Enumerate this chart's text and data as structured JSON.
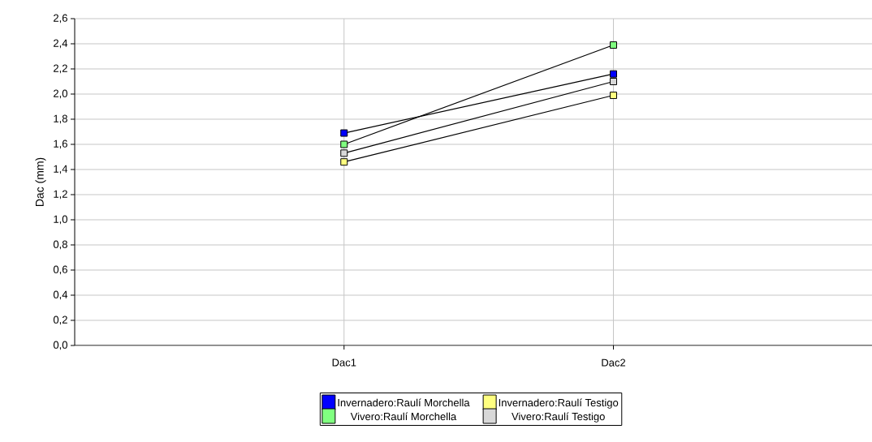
{
  "chart_data": {
    "type": "line",
    "ylabel": "Dac (mm)",
    "categories": [
      "Dac1",
      "Dac2"
    ],
    "series": [
      {
        "name": "Invernadero:Raulí Morchella",
        "color": "#0000ff",
        "values": [
          1.69,
          2.16
        ]
      },
      {
        "name": "Invernadero:Raulí Testigo",
        "color": "#ffff80",
        "values": [
          1.46,
          1.99
        ]
      },
      {
        "name": "Vivero:Raulí Morchella",
        "color": "#80ff80",
        "values": [
          1.6,
          2.39
        ]
      },
      {
        "name": "Vivero:Raulí Testigo",
        "color": "#d8d8d8",
        "values": [
          1.53,
          2.1
        ]
      }
    ],
    "ylim": [
      0,
      2.6
    ],
    "yticks": [
      {
        "value": 0,
        "label": "0,0"
      },
      {
        "value": 0.2,
        "label": "0,2"
      },
      {
        "value": 0.4,
        "label": "0,4"
      },
      {
        "value": 0.6,
        "label": "0,6"
      },
      {
        "value": 0.8,
        "label": "0,8"
      },
      {
        "value": 1.0,
        "label": "1,0"
      },
      {
        "value": 1.2,
        "label": "1,2"
      },
      {
        "value": 1.4,
        "label": "1,4"
      },
      {
        "value": 1.6,
        "label": "1,6"
      },
      {
        "value": 1.8,
        "label": "1,8"
      },
      {
        "value": 2.0,
        "label": "2,0"
      },
      {
        "value": 2.2,
        "label": "2,2"
      },
      {
        "value": 2.4,
        "label": "2,4"
      },
      {
        "value": 2.6,
        "label": "2,6"
      }
    ],
    "grid": true,
    "legend": "bottom",
    "marker": "square",
    "line_style": "solid"
  }
}
